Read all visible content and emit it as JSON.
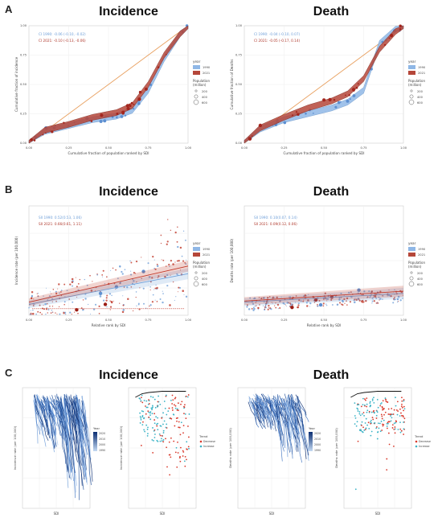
{
  "panels": {
    "A": {
      "letter": "A",
      "left_title": "Incidence",
      "right_title": "Death"
    },
    "B": {
      "letter": "B",
      "left_title": "Incidence",
      "right_title": "Death"
    },
    "C": {
      "letter": "C",
      "left_title": "Incidence",
      "right_title": "Death"
    }
  },
  "colors": {
    "y1990": "#8fb7e6",
    "y2021": "#b5473a",
    "diag": "#e8a060",
    "trend_dec": "#d9392b",
    "trend_inc": "#3ab3c6",
    "blue_dark": "#1f4f9a"
  },
  "chart_data": [
    {
      "type": "line",
      "id": "A-incidence",
      "title": "Incidence",
      "xlabel": "Cumulative fraction of population ranked by SDI",
      "ylabel": "Cumulative fraction of incidence",
      "xlim": [
        0,
        1
      ],
      "ylim": [
        0,
        1
      ],
      "x_ticks": [
        "0.00",
        "0.25",
        "0.50",
        "0.75",
        "1.00"
      ],
      "y_ticks": [
        "0.00",
        "0.25",
        "0.50",
        "0.75",
        "1.00"
      ],
      "annotations": [
        "CI 1990: -0.06 (-0.10, -0.02)",
        "CI 2021: -0.10 (-0.13, -0.06)"
      ],
      "legend": {
        "year_title": "year",
        "years": [
          "1990",
          "2021"
        ],
        "pop_title": "Population (million)",
        "pop_sizes": [
          "200",
          "400",
          "600"
        ]
      },
      "series": [
        {
          "name": "1990",
          "x": [
            0.0,
            0.1,
            0.25,
            0.4,
            0.55,
            0.65,
            0.75,
            0.85,
            0.95,
            1.0
          ],
          "y": [
            0.0,
            0.1,
            0.15,
            0.2,
            0.23,
            0.28,
            0.45,
            0.72,
            0.93,
            1.0
          ]
        },
        {
          "name": "2021",
          "x": [
            0.0,
            0.1,
            0.25,
            0.4,
            0.55,
            0.65,
            0.75,
            0.85,
            0.95,
            1.0
          ],
          "y": [
            0.0,
            0.11,
            0.16,
            0.22,
            0.26,
            0.32,
            0.5,
            0.75,
            0.93,
            1.0
          ]
        }
      ]
    },
    {
      "type": "line",
      "id": "A-death",
      "title": "Death",
      "xlabel": "Cumulative fraction of population ranked by SDI",
      "ylabel": "Cumulative fraction of Deaths",
      "xlim": [
        0,
        1
      ],
      "ylim": [
        0,
        1
      ],
      "x_ticks": [
        "0.00",
        "0.25",
        "0.50",
        "0.75",
        "1.00"
      ],
      "y_ticks": [
        "0.00",
        "0.25",
        "0.50",
        "0.75",
        "1.00"
      ],
      "annotations": [
        "CI 1990: -0.04 (-0.10, 0.07)",
        "CI 2021: -0.05 (-0.17, 0.14)"
      ],
      "legend": {
        "year_title": "year",
        "years": [
          "1990",
          "2021"
        ],
        "pop_title": "Population (million)",
        "pop_sizes": [
          "200",
          "400",
          "600"
        ]
      },
      "series": [
        {
          "name": "1990",
          "x": [
            0.0,
            0.1,
            0.25,
            0.4,
            0.55,
            0.65,
            0.75,
            0.85,
            0.95,
            1.0
          ],
          "y": [
            0.0,
            0.12,
            0.2,
            0.25,
            0.3,
            0.35,
            0.45,
            0.85,
            0.97,
            1.0
          ]
        },
        {
          "name": "2021",
          "x": [
            0.0,
            0.1,
            0.25,
            0.4,
            0.55,
            0.65,
            0.75,
            0.85,
            0.95,
            1.0
          ],
          "y": [
            0.0,
            0.13,
            0.22,
            0.3,
            0.36,
            0.42,
            0.55,
            0.8,
            0.95,
            1.0
          ]
        }
      ]
    },
    {
      "type": "scatter",
      "id": "B-incidence",
      "title": "Incidence",
      "xlabel": "Relative rank by SDI",
      "ylabel": "Incidence rate (per 100,000)",
      "xlim": [
        0,
        1
      ],
      "x_ticks": [
        "0.00",
        "0.25",
        "0.50",
        "0.75",
        "1.00"
      ],
      "annotations": [
        "SII 1990: 0.52(0.53, 1.06)",
        "SII 2021: 0.66(0.61, 1.11)"
      ],
      "legend": {
        "year_title": "year",
        "years": [
          "1990",
          "2021"
        ],
        "pop_title": "Population (million)",
        "pop_sizes": [
          "200",
          "400",
          "600"
        ]
      },
      "series": [
        {
          "name": "1990",
          "fit": [
            [
              0.0,
              0.1
            ],
            [
              1.0,
              0.38
            ]
          ]
        },
        {
          "name": "2021",
          "fit": [
            [
              0.0,
              0.12
            ],
            [
              1.0,
              0.45
            ]
          ]
        }
      ]
    },
    {
      "type": "scatter",
      "id": "B-death",
      "title": "Death",
      "xlabel": "Relative rank by SDI",
      "ylabel": "Deaths rate (per 100,000)",
      "xlim": [
        0,
        1
      ],
      "x_ticks": [
        "0.00",
        "0.25",
        "0.50",
        "0.75",
        "1.00"
      ],
      "annotations": [
        "SII 1990: 0.10(0.07, 0.14)",
        "SII 2021: 0.09(0.12, 0.06)"
      ],
      "legend": {
        "year_title": "year",
        "years": [
          "1990",
          "2021"
        ],
        "pop_title": "Population (million)",
        "pop_sizes": [
          "200",
          "400",
          "600"
        ]
      },
      "series": [
        {
          "name": "1990",
          "fit": [
            [
              0.0,
              0.12
            ],
            [
              1.0,
              0.2
            ]
          ]
        },
        {
          "name": "2021",
          "fit": [
            [
              0.0,
              0.13
            ],
            [
              1.0,
              0.22
            ]
          ]
        }
      ]
    },
    {
      "type": "scatter",
      "id": "C-incidence-left",
      "xlabel": "SDI",
      "ylabel": "Incidence rate (per 100,000)",
      "legend": {
        "title": "Year",
        "ticks": [
          "2020",
          "2010",
          "2000",
          "1990"
        ]
      }
    },
    {
      "type": "scatter",
      "id": "C-incidence-right",
      "xlabel": "SDI",
      "ylabel": "Incidence rate (per 100,000)",
      "legend": {
        "title": "Trend",
        "items": [
          "Decrease",
          "Increase"
        ]
      }
    },
    {
      "type": "scatter",
      "id": "C-death-left",
      "xlabel": "SDI",
      "ylabel": "Deaths rate (per 100,000)",
      "legend": {
        "title": "Year",
        "ticks": [
          "2020",
          "2010",
          "2000",
          "1990"
        ]
      }
    },
    {
      "type": "scatter",
      "id": "C-death-right",
      "xlabel": "SDI",
      "ylabel": "Deaths rate (per 100,000)",
      "legend": {
        "title": "Trend",
        "items": [
          "Decrease",
          "Increase"
        ]
      }
    }
  ]
}
